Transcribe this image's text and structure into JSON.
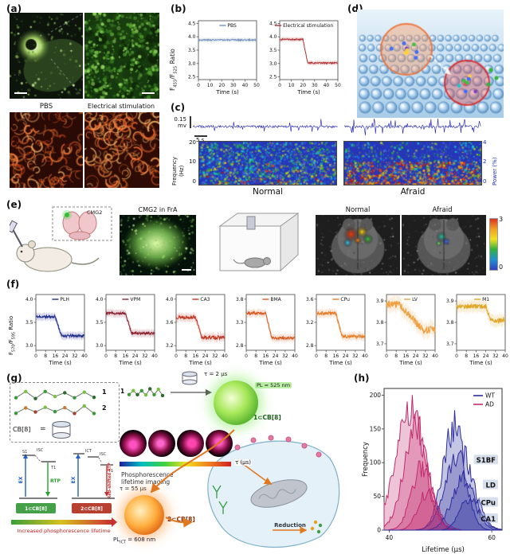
{
  "panel_labels": {
    "a": "(a)",
    "b": "(b)",
    "c": "(c)",
    "d": "(d)",
    "e": "(e)",
    "f": "(f)",
    "g": "(g)",
    "h": "(h)"
  },
  "panel_a": {
    "col_labels": [
      "PBS",
      "Electrical stimulation"
    ]
  },
  "panel_b": {
    "ylabel": {
      "pre": "F",
      "sub1": "455",
      "mid": "/F",
      "sub2": "525",
      "post": " Ratio"
    }
  },
  "panel_c": {
    "scale_v": "0.15",
    "scale_v_unit": "mv",
    "scale_h": "5 s",
    "freq_label": "Frequency",
    "freq_unit": "(Hz)",
    "freq_ticks": [
      "20",
      "10",
      "0"
    ],
    "power_label": "Power (%)",
    "power_ticks": [
      "4",
      "2",
      "0"
    ],
    "conditions": [
      "Normal",
      "Afraid"
    ],
    "traces": {
      "normal": {
        "seed": 5,
        "spike": 0.05,
        "amp": 9
      },
      "afraid": {
        "seed": 9,
        "spike": 0.3,
        "amp": 11
      }
    },
    "spectrograms": {
      "normal": {
        "seed": 31,
        "hot": 0.1
      },
      "afraid": {
        "seed": 47,
        "hot": 0.5
      }
    }
  },
  "panel_d": {},
  "panel_e": {
    "injection_label": "CMG2",
    "image_title": "CMG2 in FrA",
    "conditions": [
      "Normal",
      "Afraid"
    ],
    "colorbar": {
      "max": "3",
      "min": "0"
    },
    "brains": {
      "normal": {
        "spots": [
          [
            0.42,
            0.32,
            10,
            "#ff3000"
          ],
          [
            0.55,
            0.28,
            8,
            "#ffd000"
          ],
          [
            0.62,
            0.4,
            7,
            "#30c030"
          ],
          [
            0.38,
            0.46,
            6,
            "#30c0f0"
          ],
          [
            0.5,
            0.42,
            5,
            "#ff8000"
          ]
        ]
      },
      "afraid": {
        "spots": [
          [
            0.47,
            0.36,
            7,
            "#20c0a0"
          ],
          [
            0.53,
            0.44,
            5,
            "#3060ff"
          ],
          [
            0.44,
            0.47,
            4,
            "#60e060"
          ]
        ]
      }
    }
  },
  "panel_f": {
    "ylabel": {
      "pre": "F",
      "sub1": "570",
      "mid": "/F",
      "sub2": "595",
      "post": " Ratio"
    }
  },
  "panel_g": {
    "mol1": "1",
    "mol2": "2",
    "cb8": "CB[8]",
    "equals": "=",
    "tau1": "τ = 2 μs",
    "pl1": "PL = 525 nm",
    "complex1": "1⊂CB[8]",
    "tau2": "τ = 55 μs",
    "pl2": {
      "pre": "PL",
      "sub": "ICT",
      "post": " = 608 nm"
    },
    "complex2": "2⊂CB[8]",
    "imaging_caption": "Phosphorescence lifetime imaging",
    "tau_axis": "τ (μs)",
    "reduction": "Reduction",
    "j1": {
      "ex": "EX",
      "s1": "S1",
      "isc": "ISC",
      "t1": "T1",
      "rtp": "RTP",
      "caption": "1⊂CB[8]"
    },
    "j2": {
      "ex": "EX",
      "ict": "ICT",
      "isc": "ISC",
      "t1": "T1",
      "rtp": "Red-shifted RTP",
      "caption": "2⊂CB[8]"
    },
    "bottom_caption": "Increased phosphorescence lifetime"
  },
  "chart_data": [
    {
      "id": "b-pbs",
      "type": "line",
      "legend": "PBS",
      "color": "#7290b8",
      "seed": 3,
      "xlabel": "Time (s)",
      "ylabel": "F455/F525 Ratio",
      "xlim": [
        0,
        50
      ],
      "x_ticks": [
        0,
        10,
        20,
        30,
        40,
        50
      ],
      "ylim": [
        2.4,
        4.6
      ],
      "y_ticks": [
        "2.5",
        "3.0",
        "3.5",
        "4.0",
        "4.5"
      ],
      "baseline": 3.88,
      "drop_to": null,
      "drop_start": null,
      "drop_end": null,
      "noise": 0.025,
      "band": 0.08
    },
    {
      "id": "b-es",
      "type": "line",
      "legend": "Electrical stimulation",
      "color": "#b03434",
      "seed": 4,
      "xlabel": "Time (s)",
      "ylabel": "F455/F525 Ratio",
      "xlim": [
        0,
        50
      ],
      "x_ticks": [
        0,
        10,
        20,
        30,
        40,
        50
      ],
      "ylim": [
        2.4,
        4.6
      ],
      "y_ticks": [
        "2.5",
        "3.0",
        "3.5",
        "4.0",
        "4.5"
      ],
      "baseline": 3.9,
      "drop_to": 3.02,
      "drop_start": 20,
      "drop_end": 24,
      "noise": 0.025,
      "band": 0.08
    },
    {
      "id": "f-plh",
      "type": "line",
      "legend": "PLH",
      "color": "#1f2f8c",
      "seed": 11,
      "xlabel": "Time (s)",
      "ylabel": "F570/F595 Ratio",
      "xlim": [
        0,
        40
      ],
      "x_ticks": [
        0,
        8,
        16,
        24,
        32,
        40
      ],
      "ylim": [
        2.9,
        4.1
      ],
      "y_ticks": [
        "3.0",
        "3.5",
        "4.0"
      ],
      "baseline": 3.62,
      "drop_to": 3.21,
      "drop_start": 16,
      "drop_end": 21,
      "noise": 0.03,
      "band": 0.08
    },
    {
      "id": "f-vpm",
      "type": "line",
      "legend": "VPM",
      "color": "#8c2332",
      "seed": 12,
      "xlabel": "Time (s)",
      "ylabel": "F570/F595 Ratio",
      "xlim": [
        0,
        40
      ],
      "x_ticks": [
        0,
        8,
        16,
        24,
        32,
        40
      ],
      "ylim": [
        2.9,
        4.1
      ],
      "y_ticks": [
        "3.0",
        "3.5",
        "4.0"
      ],
      "baseline": 3.7,
      "drop_to": 3.27,
      "drop_start": 16,
      "drop_end": 21,
      "noise": 0.03,
      "band": 0.08
    },
    {
      "id": "f-ca3",
      "type": "line",
      "legend": "CA3",
      "color": "#c03a28",
      "seed": 13,
      "xlabel": "Time (s)",
      "ylabel": "F570/F595 Ratio",
      "xlim": [
        0,
        40
      ],
      "x_ticks": [
        0,
        8,
        16,
        24,
        32,
        40
      ],
      "ylim": [
        3.12,
        4.08
      ],
      "y_ticks": [
        "3.2",
        "3.6",
        "4.0"
      ],
      "baseline": 3.69,
      "drop_to": 3.34,
      "drop_start": 16,
      "drop_end": 21,
      "noise": 0.03,
      "band": 0.07
    },
    {
      "id": "f-bma",
      "type": "line",
      "legend": "BMA",
      "color": "#d85a20",
      "seed": 14,
      "xlabel": "Time (s)",
      "ylabel": "F570/F595 Ratio",
      "xlim": [
        0,
        40
      ],
      "x_ticks": [
        0,
        8,
        16,
        24,
        32,
        40
      ],
      "ylim": [
        2.7,
        3.9
      ],
      "y_ticks": [
        "2.8",
        "3.3",
        "3.8"
      ],
      "baseline": 3.5,
      "drop_to": 2.96,
      "drop_start": 16,
      "drop_end": 21,
      "noise": 0.03,
      "band": 0.08
    },
    {
      "id": "f-cpu",
      "type": "line",
      "legend": "CPu",
      "color": "#e87c28",
      "seed": 15,
      "xlabel": "Time (s)",
      "ylabel": "F570/F595 Ratio",
      "xlim": [
        0,
        40
      ],
      "x_ticks": [
        0,
        8,
        16,
        24,
        32,
        40
      ],
      "ylim": [
        2.72,
        3.68
      ],
      "y_ticks": [
        "2.8",
        "3.2",
        "3.6"
      ],
      "baseline": 3.36,
      "drop_to": 2.96,
      "drop_start": 16,
      "drop_end": 21,
      "noise": 0.028,
      "band": 0.07
    },
    {
      "id": "f-lv",
      "type": "line",
      "legend": "LV",
      "color": "#f0a040",
      "seed": 16,
      "xlabel": "Time (s)",
      "ylabel": "F570/F595 Ratio",
      "xlim": [
        0,
        40
      ],
      "x_ticks": [
        0,
        8,
        16,
        24,
        32,
        40
      ],
      "ylim": [
        3.67,
        3.93
      ],
      "y_ticks": [
        "3.7",
        "3.8",
        "3.9"
      ],
      "baseline": 3.885,
      "drop_to": 3.765,
      "drop_start": 10,
      "drop_end": 30,
      "noise": 0.018,
      "band": 0.035
    },
    {
      "id": "f-m1",
      "type": "line",
      "legend": "M1",
      "color": "#e0a82a",
      "seed": 17,
      "xlabel": "Time (s)",
      "ylabel": "F570/F595 Ratio",
      "xlim": [
        0,
        40
      ],
      "x_ticks": [
        0,
        8,
        16,
        24,
        32,
        40
      ],
      "ylim": [
        3.67,
        3.93
      ],
      "y_ticks": [
        "3.7",
        "3.8",
        "3.9"
      ],
      "baseline": 3.875,
      "drop_to": 3.81,
      "drop_start": 24,
      "drop_end": 28,
      "noise": 0.012,
      "band": 0.028
    },
    {
      "id": "h",
      "type": "distribution",
      "xlabel": "Lifetime (μs)",
      "ylabel": "Frequency",
      "xlim": [
        39,
        62
      ],
      "x_ticks": [
        40,
        60
      ],
      "ylim": [
        0,
        210
      ],
      "y_ticks": [
        0,
        50,
        100,
        150,
        200
      ],
      "legend": [
        "WT",
        "AD"
      ],
      "series_colors": {
        "WT": "#2d2d9e",
        "AD": "#c22a6e"
      },
      "regions": [
        {
          "label": "S1BF",
          "label_y": 103,
          "AD": {
            "mean": 45.2,
            "sd": 2.4,
            "amp": 148
          },
          "WT": {
            "mean": 52.6,
            "sd": 2.1,
            "amp": 152
          }
        },
        {
          "label": "LD",
          "label_y": 66,
          "AD": {
            "mean": 44.2,
            "sd": 3.0,
            "amp": 172
          },
          "WT": {
            "mean": 53.8,
            "sd": 2.6,
            "amp": 118
          }
        },
        {
          "label": "CPu",
          "label_y": 40,
          "AD": {
            "mean": 46.4,
            "sd": 2.0,
            "amp": 92
          },
          "WT": {
            "mean": 54.6,
            "sd": 2.3,
            "amp": 78
          }
        },
        {
          "label": "CA1",
          "label_y": 16,
          "AD": {
            "mean": 47.3,
            "sd": 1.7,
            "amp": 55
          },
          "WT": {
            "mean": 55.6,
            "sd": 1.8,
            "amp": 46
          }
        }
      ]
    }
  ]
}
